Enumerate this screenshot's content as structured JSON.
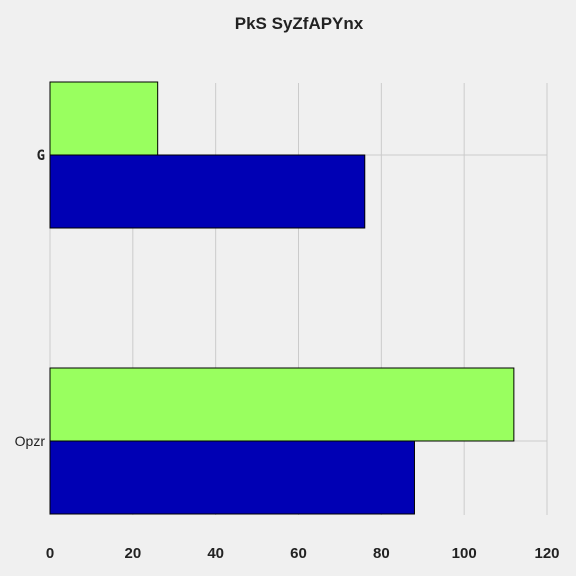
{
  "chart_data": {
    "type": "bar",
    "orientation": "horizontal",
    "title": "PkS SyZfAPYnx",
    "categories": [
      "G",
      "Opzr"
    ],
    "series": [
      {
        "color": "#0000b4",
        "values": [
          76,
          88
        ]
      },
      {
        "color": "#99ff5f",
        "values": [
          26,
          112
        ]
      }
    ],
    "x_ticks": [
      "0",
      "20",
      "40",
      "60",
      "80",
      "100",
      "120"
    ],
    "xlim": [
      0,
      120
    ],
    "grid": true,
    "legend": "none",
    "background": "#f0f0f0"
  }
}
